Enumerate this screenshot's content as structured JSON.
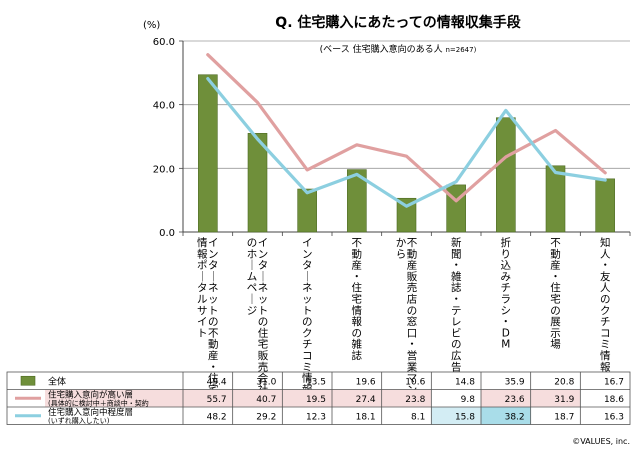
{
  "chart_data": {
    "type": "bar",
    "title": "Q. 住宅購入にあたっての情報収集手段",
    "subtitle": "(ベース 住宅購入意向のある人",
    "subtitle_n": "n=2647)",
    "ylabel": "(%)",
    "ylim": [
      0,
      60
    ],
    "yticks": [
      "60.0",
      "40.0",
      "20.0",
      "0.0"
    ],
    "grid": true,
    "categories": [
      "インターネットの不動産・住宅情報ポータルサイト",
      "インターネットの住宅販売会社のホームページ",
      "インターネットのクチコミ情報",
      "不動産・住宅情報の雑誌",
      "不動産販売店の窓口・営業マンから",
      "新聞・雑誌・テレビの広告",
      "折り込みチラシ・DM",
      "不動産・住宅の展示場",
      "知人・友人のクチコミ情報"
    ],
    "series": [
      {
        "name": "全体",
        "type": "bar",
        "color": "#6f8f3a",
        "values": [
          49.4,
          31.0,
          13.5,
          19.6,
          10.6,
          14.8,
          35.9,
          20.8,
          16.7
        ],
        "display": [
          "49.4",
          "31.0",
          "13.5",
          "19.6",
          "10.6",
          "14.8",
          "35.9",
          "20.8",
          "16.7"
        ]
      },
      {
        "name": "住宅購入意向が高い層",
        "name2": "(具体的に検討中＋商談中・契約",
        "type": "line",
        "color": "#e0a0a0",
        "values": [
          55.7,
          40.7,
          19.5,
          27.4,
          23.8,
          9.8,
          23.6,
          31.9,
          18.6
        ],
        "display": [
          "55.7",
          "40.7",
          "19.5",
          "27.4",
          "23.8",
          "9.8",
          "23.6",
          "31.9",
          "18.6"
        ]
      },
      {
        "name": "住宅購入意向中程度層",
        "name2": "(いずれ購入したい)",
        "type": "line",
        "color": "#8ccfe0",
        "values": [
          48.2,
          29.2,
          12.3,
          18.1,
          8.1,
          15.8,
          38.2,
          18.7,
          16.3
        ],
        "display": [
          "48.2",
          "29.2",
          "12.3",
          "18.1",
          "8.1",
          "15.8",
          "38.2",
          "18.7",
          "16.3"
        ]
      }
    ],
    "highlight_cells": {
      "1": [
        0,
        1,
        2,
        3,
        4,
        6,
        7
      ],
      "2": [
        5,
        6
      ]
    },
    "highlight_colors": {
      "1": "#f6dddd",
      "2": "#d3edf4",
      "2_strong": "#a9dde9"
    },
    "credit": "©VALUES, inc."
  }
}
